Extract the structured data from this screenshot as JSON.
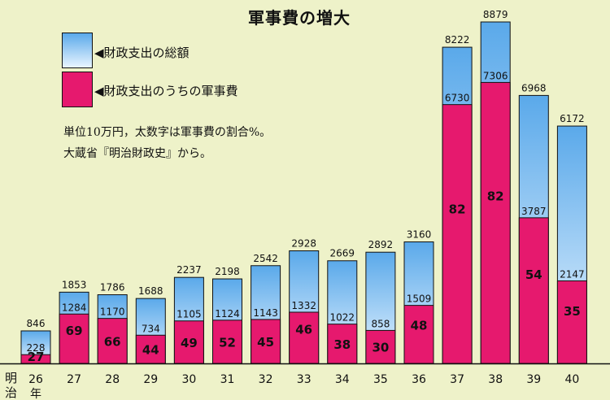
{
  "title": "軍事費の増大",
  "legend": {
    "total_label": "財政支出の総額",
    "military_label": "財政支出のうちの軍事費",
    "total_color_top": "#5aa9ea",
    "total_color_bottom": "#e9f5ff",
    "military_color": "#e6196e"
  },
  "notes": {
    "line1": "単位10万円，太数字は軍事費の割合%。",
    "line2": "大蔵省『明治財政史』から。"
  },
  "era": {
    "name_line1": "明",
    "name_line2": "治",
    "year_unit": "年"
  },
  "chart_data": {
    "type": "bar",
    "title": "軍事費の増大",
    "categories": [
      "26",
      "27",
      "28",
      "29",
      "30",
      "31",
      "32",
      "33",
      "34",
      "35",
      "36",
      "37",
      "38",
      "39",
      "40"
    ],
    "series": [
      {
        "name": "財政支出の総額",
        "values": [
          846,
          1853,
          1786,
          1688,
          2237,
          2198,
          2542,
          2928,
          2669,
          2892,
          3160,
          8222,
          8879,
          6968,
          6172
        ]
      },
      {
        "name": "財政支出のうちの軍事費",
        "values": [
          228,
          1284,
          1170,
          734,
          1105,
          1124,
          1143,
          1332,
          1022,
          858,
          1509,
          6730,
          7306,
          3787,
          2147
        ]
      }
    ],
    "military_share_percent": [
      27,
      69,
      66,
      44,
      49,
      52,
      45,
      46,
      38,
      30,
      48,
      82,
      82,
      54,
      35
    ],
    "ylim": [
      0,
      8879
    ],
    "grid": false,
    "legend_position": "top-left"
  }
}
